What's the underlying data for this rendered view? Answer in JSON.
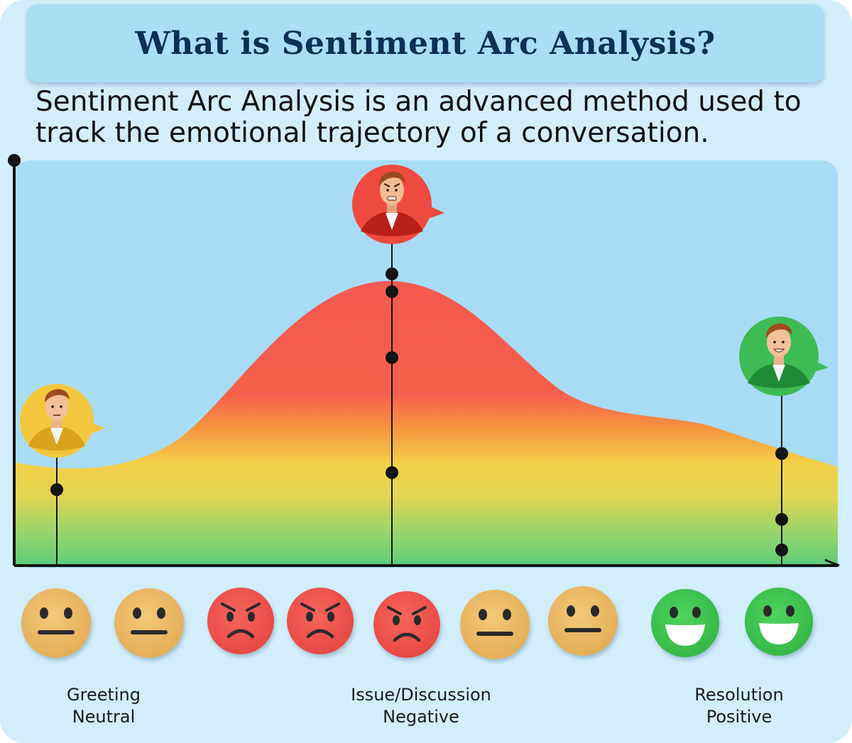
{
  "title": "What is Sentiment Arc Analysis?",
  "intro": "Sentiment Arc Analysis is an advanced method used to track the emotional trajectory of a conversation.",
  "colors": {
    "negative": "#f2574e",
    "neutral": "#e8b866",
    "positive": "#3fc055",
    "neutral_avatar": "#f3c73d",
    "negative_avatar": "#ef4a3f",
    "positive_avatar": "#3fbb55",
    "sky": "#a8dcf5"
  },
  "phases": [
    {
      "name": "Greeting",
      "sentiment": "Neutral"
    },
    {
      "name": "Issue/Discussion",
      "sentiment": "Negative"
    },
    {
      "name": "Resolution",
      "sentiment": "Positive"
    }
  ],
  "avatars": [
    {
      "mood": "neutral",
      "icon": "neutral-person-icon"
    },
    {
      "mood": "angry",
      "icon": "angry-person-icon"
    },
    {
      "mood": "happy",
      "icon": "happy-person-icon"
    }
  ],
  "emoji_sequence": [
    "neutral",
    "neutral",
    "angry",
    "angry",
    "angry",
    "neutral",
    "neutral",
    "happy",
    "happy"
  ]
}
